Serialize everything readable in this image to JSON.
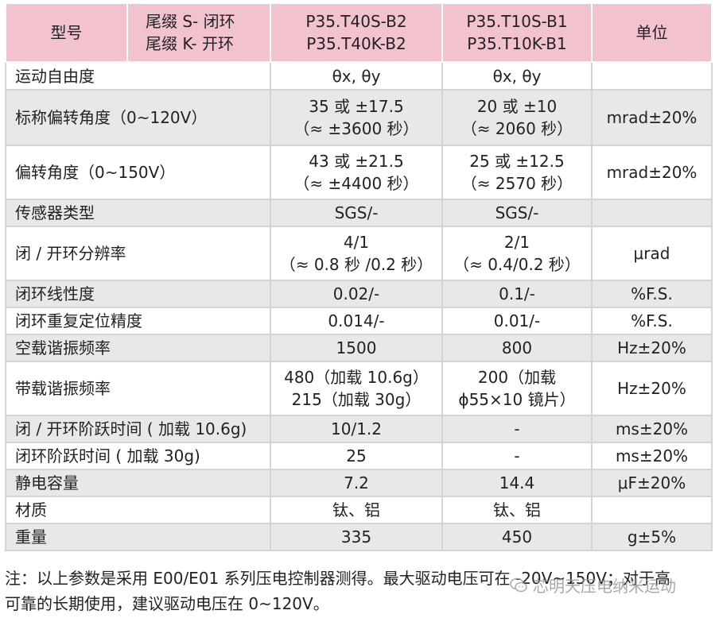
{
  "table": {
    "header": {
      "model_label": "型号",
      "suffix_lines": [
        "尾缀 S- 闭环",
        "尾缀 K- 开环"
      ],
      "col1_lines": [
        "P35.T40S-B2",
        "P35.T40K-B2"
      ],
      "col2_lines": [
        "P35.T10S-B1",
        "P35.T10K-B1"
      ],
      "unit_label": "单位"
    },
    "rows": [
      {
        "label": "运动自由度",
        "c1": [
          "θx, θy"
        ],
        "c2": [
          "θx, θy"
        ],
        "unit": ""
      },
      {
        "label": "标称偏转角度（0~120V）",
        "c1": [
          "35 或 ±17.5",
          "（≈ ±3600 秒）"
        ],
        "c2": [
          "20 或 ±10",
          "（≈ 2060 秒）"
        ],
        "unit": "mrad±20%"
      },
      {
        "label": "偏转角度（0~150V）",
        "c1": [
          "43 或 ±21.5",
          "（≈ ±4400 秒）"
        ],
        "c2": [
          "25 或 ±12.5",
          "（≈ 2570 秒）"
        ],
        "unit": "mrad±20%"
      },
      {
        "label": "传感器类型",
        "c1": [
          "SGS/-"
        ],
        "c2": [
          "SGS/-"
        ],
        "unit": ""
      },
      {
        "label": "闭 / 开环分辨率",
        "c1": [
          "4/1",
          "（≈ 0.8 秒 /0.2 秒）"
        ],
        "c2": [
          "2/1",
          "（≈ 0.4/0.2 秒）"
        ],
        "unit": "μrad"
      },
      {
        "label": "闭环线性度",
        "c1": [
          "0.02/-"
        ],
        "c2": [
          "0.1/-"
        ],
        "unit": "%F.S."
      },
      {
        "label": "闭环重复定位精度",
        "c1": [
          "0.014/-"
        ],
        "c2": [
          "0.01/-"
        ],
        "unit": "%F.S."
      },
      {
        "label": "空载谐振频率",
        "c1": [
          "1500"
        ],
        "c2": [
          "800"
        ],
        "unit": "Hz±20%"
      },
      {
        "label": "带载谐振频率",
        "c1": [
          "480（加载 10.6g）",
          "215（加载 30g）"
        ],
        "c2": [
          "200（加载",
          "ϕ55×10 镜片）"
        ],
        "unit": "Hz±20%"
      },
      {
        "label": "闭 / 开环阶跃时间 ( 加载 10.6g)",
        "c1": [
          "10/1.2"
        ],
        "c2": [
          "-"
        ],
        "unit": "ms±20%"
      },
      {
        "label": "闭环阶跃时间 ( 加载 30g)",
        "c1": [
          "25"
        ],
        "c2": [
          "-"
        ],
        "unit": "ms±20%"
      },
      {
        "label": "静电容量",
        "c1": [
          "7.2"
        ],
        "c2": [
          "14.4"
        ],
        "unit": "μF±20%"
      },
      {
        "label": "材质",
        "c1": [
          "钛、铝"
        ],
        "c2": [
          "钛、铝"
        ],
        "unit": ""
      },
      {
        "label": "重量",
        "c1": [
          "335"
        ],
        "c2": [
          "450"
        ],
        "unit": "g±5%"
      }
    ]
  },
  "note": {
    "lines": [
      "注：以上参数是采用 E00/E01 系列压电控制器测得。最大驱动电压可在 -20V~150V；对于高",
      "可靠的长期使用，建议驱动电压在 0~120V。"
    ]
  },
  "watermark": {
    "text": "芯明天压电纳米运动"
  }
}
